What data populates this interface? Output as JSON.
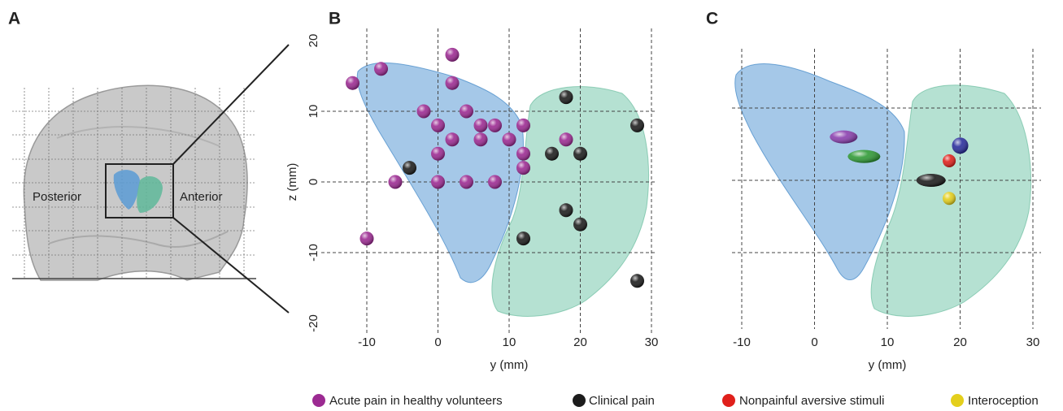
{
  "figure": {
    "panel_labels": [
      "A",
      "B",
      "C"
    ],
    "brain_labels": [
      "Posterior",
      "Anterior"
    ]
  },
  "chart_data": [
    {
      "type": "scatter",
      "marker": "sphere",
      "xlabel": "y (mm)",
      "ylabel": "z (mm)",
      "xlim": [
        -10,
        30
      ],
      "ylim": [
        -20,
        20
      ],
      "xticks": [
        -10,
        0,
        10,
        20,
        30
      ],
      "yticks": [
        -20,
        -10,
        0,
        10,
        20
      ],
      "grid": true,
      "series": [
        {
          "name": "Acute pain in healthy volunteers",
          "color": "#9c2a92",
          "x": [
            -12,
            -8,
            2,
            2,
            -2,
            4,
            0,
            6,
            8,
            12,
            2,
            6,
            10,
            18,
            12,
            0,
            12,
            -6,
            0,
            4,
            8,
            -10
          ],
          "y": [
            14,
            16,
            18,
            14,
            10,
            10,
            8,
            8,
            8,
            8,
            6,
            6,
            6,
            6,
            4,
            4,
            2,
            0,
            0,
            0,
            0,
            -8
          ]
        },
        {
          "name": "Clinical pain",
          "color": "#1c1c1c",
          "x": [
            18,
            28,
            16,
            20,
            -4,
            18,
            20,
            12,
            28
          ],
          "y": [
            12,
            8,
            4,
            4,
            2,
            -4,
            -6,
            -8,
            -14
          ]
        }
      ]
    },
    {
      "type": "scatter",
      "marker": "ellipse",
      "xlabel": "y (mm)",
      "xlim": [
        -10,
        30
      ],
      "ylim": [
        -20,
        20
      ],
      "xticks": [
        -10,
        0,
        10,
        20,
        30
      ],
      "yticks": [
        -10,
        0,
        10
      ],
      "grid": true,
      "ytick_labels": false,
      "series": [
        {
          "color": "#8a3fae",
          "x": [
            4
          ],
          "y": [
            6
          ]
        },
        {
          "color": "#2f9a36",
          "x": [
            6.8
          ],
          "y": [
            3.3
          ]
        },
        {
          "color": "#2a2d9c",
          "x": [
            20
          ],
          "y": [
            4.8
          ]
        },
        {
          "color": "#1c1c1c",
          "x": [
            16
          ],
          "y": [
            0
          ]
        },
        {
          "name": "Nonpainful aversive stimuli",
          "color": "#e0201b",
          "x": [
            18.5
          ],
          "y": [
            2.7
          ]
        },
        {
          "name": "Interoception",
          "color": "#e4cf1c",
          "x": [
            18.5
          ],
          "y": [
            -2.5
          ]
        }
      ]
    }
  ]
}
